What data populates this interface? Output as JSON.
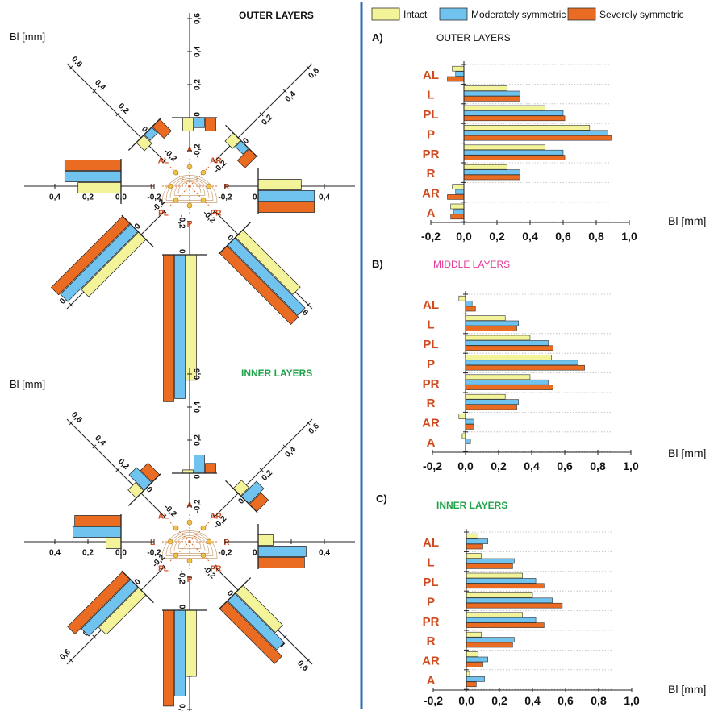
{
  "colors": {
    "intact": "#f3f39a",
    "moderate": "#6fc3ee",
    "severe": "#ea6b22",
    "divider": "#2f6eb5",
    "cat_label": "#d04a1f",
    "outer_title": "#111111",
    "middle_title": "#e03a9a",
    "inner_title": "#1fa24a"
  },
  "legend": [
    "Intact",
    "Moderately symmetric",
    "Severely symmetric"
  ],
  "left_panel": {
    "unit_label": "Bl [mm]",
    "outer_title": "OUTER LAYERS",
    "inner_title": "INNER LAYERS",
    "directions": [
      "A",
      "AR",
      "R",
      "PR",
      "P",
      "PL",
      "L",
      "AL"
    ],
    "ticks": [
      "-0,2",
      "0,0",
      "0,2",
      "0,4",
      "0,6",
      "0,8",
      "1,0"
    ]
  },
  "chart_data": [
    {
      "type": "bar",
      "panel_label": "A)",
      "title": "OUTER LAYERS",
      "categories": [
        "AL",
        "L",
        "PL",
        "P",
        "PR",
        "R",
        "AR",
        "A"
      ],
      "series": [
        {
          "name": "Intact",
          "values": [
            -0.07,
            0.26,
            0.49,
            0.76,
            0.49,
            0.26,
            -0.07,
            -0.08
          ]
        },
        {
          "name": "Moderately symmetric",
          "values": [
            -0.05,
            0.34,
            0.6,
            0.87,
            0.6,
            0.34,
            -0.05,
            -0.06
          ]
        },
        {
          "name": "Severely symmetric",
          "values": [
            -0.1,
            0.34,
            0.61,
            0.89,
            0.61,
            0.34,
            -0.1,
            -0.08
          ]
        }
      ],
      "xlabel": "Bl [mm]",
      "xlim": [
        -0.2,
        1.0
      ],
      "xticks": [
        "-0,2",
        "0,0",
        "0,2",
        "0,4",
        "0,6",
        "0,8",
        "1,0"
      ]
    },
    {
      "type": "bar",
      "panel_label": "B)",
      "title": "MIDDLE LAYERS",
      "categories": [
        "AL",
        "L",
        "PL",
        "P",
        "PR",
        "R",
        "AR",
        "A"
      ],
      "series": [
        {
          "name": "Intact",
          "values": [
            -0.04,
            0.24,
            0.39,
            0.52,
            0.39,
            0.24,
            -0.04,
            -0.02
          ]
        },
        {
          "name": "Moderately symmetric",
          "values": [
            0.04,
            0.32,
            0.5,
            0.68,
            0.5,
            0.32,
            0.05,
            0.03
          ]
        },
        {
          "name": "Severely symmetric",
          "values": [
            0.06,
            0.31,
            0.53,
            0.72,
            0.53,
            0.31,
            0.05,
            0.0
          ]
        }
      ],
      "xlabel": "Bl [mm]",
      "xlim": [
        -0.2,
        1.0
      ],
      "xticks": [
        "-0,2",
        "0,0",
        "0,2",
        "0,4",
        "0,6",
        "0,8",
        "1,0"
      ]
    },
    {
      "type": "bar",
      "panel_label": "C)",
      "title": "INNER LAYERS",
      "categories": [
        "AL",
        "L",
        "PL",
        "P",
        "PR",
        "R",
        "AR",
        "A"
      ],
      "series": [
        {
          "name": "Intact",
          "values": [
            0.07,
            0.09,
            0.34,
            0.4,
            0.34,
            0.09,
            0.07,
            0.02
          ]
        },
        {
          "name": "Moderately symmetric",
          "values": [
            0.13,
            0.29,
            0.42,
            0.52,
            0.42,
            0.29,
            0.13,
            0.11
          ]
        },
        {
          "name": "Severely symmetric",
          "values": [
            0.1,
            0.28,
            0.47,
            0.58,
            0.47,
            0.28,
            0.1,
            0.06
          ]
        }
      ],
      "xlabel": "Bl [mm]",
      "xlim": [
        -0.2,
        1.0
      ],
      "xticks": [
        "-0,2",
        "0,0",
        "0,2",
        "0,4",
        "0,6",
        "0,8",
        "1,0"
      ]
    }
  ]
}
